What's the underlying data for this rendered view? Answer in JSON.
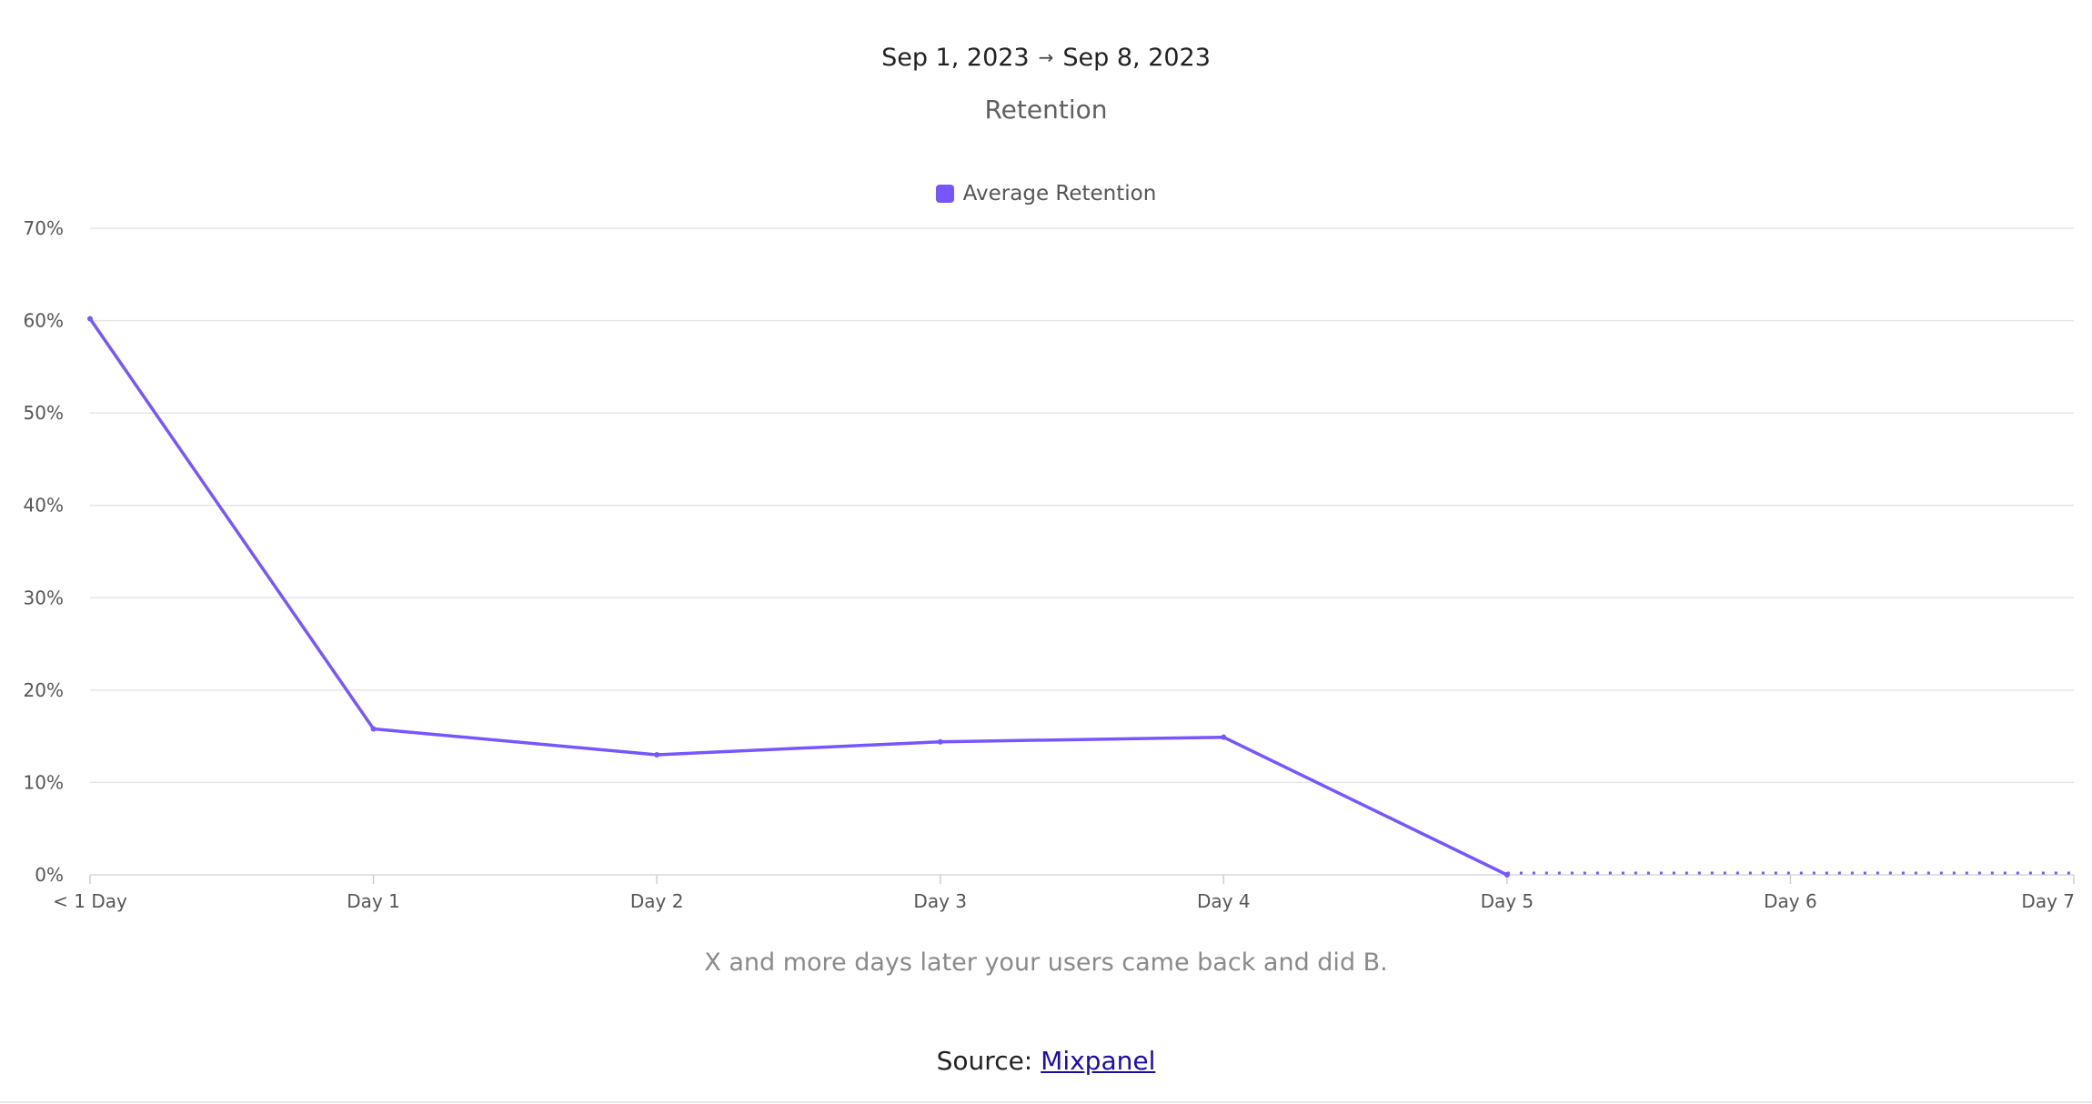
{
  "header": {
    "date_start": "Sep 1, 2023",
    "arrow": "→",
    "date_end": "Sep 8, 2023",
    "subtitle": "Retention"
  },
  "chart_data": {
    "type": "line",
    "title": "Retention",
    "categories": [
      "< 1 Day",
      "Day 1",
      "Day 2",
      "Day 3",
      "Day 4",
      "Day 5",
      "Day 6",
      "Day 7"
    ],
    "series": [
      {
        "name": "Average Retention",
        "color": "#7856ff",
        "values": [
          60.2,
          15.8,
          13.0,
          14.4,
          14.9,
          0,
          null,
          null
        ],
        "incomplete_from_index": 5,
        "incomplete_value": 0
      }
    ],
    "y_ticks": [
      "0%",
      "10%",
      "20%",
      "30%",
      "40%",
      "50%",
      "60%",
      "70%"
    ],
    "ylim": [
      0,
      70
    ],
    "y_unit": "%",
    "grid": true,
    "legend_position": "top-center"
  },
  "caption": "X and more days later your users came back and did B.",
  "source": {
    "label": "Source: ",
    "link_text": "Mixpanel"
  }
}
